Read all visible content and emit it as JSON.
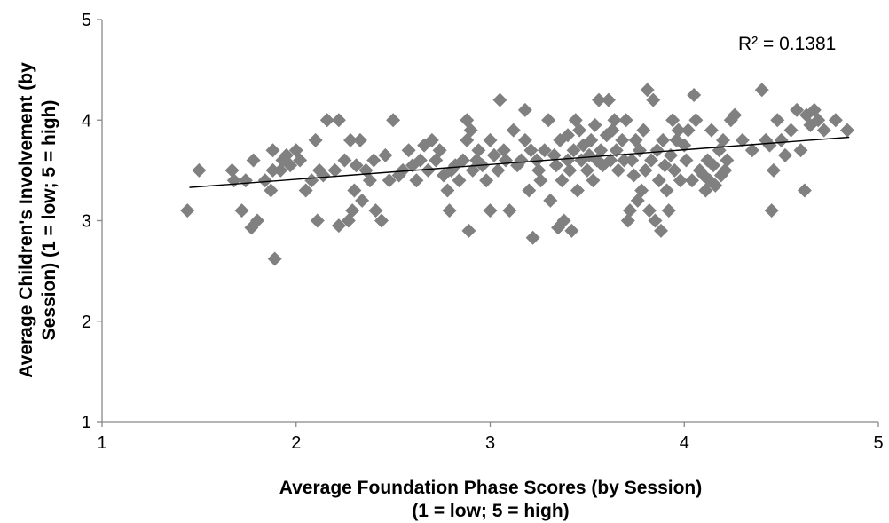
{
  "chart_data": {
    "type": "scatter",
    "title": "",
    "xlabel_lines": [
      "Average Foundation Phase Scores (by Session)",
      "(1 = low; 5 = high)"
    ],
    "ylabel_lines": [
      "Average Children's Involvement (by",
      "Session) (1 = low; 5 = high)"
    ],
    "xlim": [
      1,
      5
    ],
    "ylim": [
      1,
      5
    ],
    "xticks": [
      "1",
      "2",
      "3",
      "4",
      "5"
    ],
    "yticks": [
      "1",
      "2",
      "3",
      "4",
      "5"
    ],
    "grid": false,
    "legend": "none",
    "marker": "diamond",
    "marker_color": "#808080",
    "annotation": "R² = 0.1381",
    "trendline": {
      "type": "linear",
      "x": [
        1.45,
        4.85
      ],
      "y": [
        3.33,
        3.83
      ],
      "color": "#000000"
    },
    "series": [
      {
        "points": [
          [
            1.44,
            3.1
          ],
          [
            1.5,
            3.5
          ],
          [
            1.67,
            3.5
          ],
          [
            1.68,
            3.4
          ],
          [
            1.72,
            3.1
          ],
          [
            1.74,
            3.4
          ],
          [
            1.77,
            2.93
          ],
          [
            1.78,
            3.6
          ],
          [
            1.8,
            3.0
          ],
          [
            1.84,
            3.4
          ],
          [
            1.87,
            3.3
          ],
          [
            1.88,
            3.5
          ],
          [
            1.88,
            3.7
          ],
          [
            1.89,
            2.62
          ],
          [
            1.92,
            3.5
          ],
          [
            1.93,
            3.6
          ],
          [
            1.95,
            3.65
          ],
          [
            1.97,
            3.55
          ],
          [
            2.0,
            3.7
          ],
          [
            2.02,
            3.6
          ],
          [
            2.05,
            3.3
          ],
          [
            2.08,
            3.4
          ],
          [
            2.1,
            3.8
          ],
          [
            2.11,
            3.0
          ],
          [
            2.12,
            3.5
          ],
          [
            2.14,
            3.45
          ],
          [
            2.16,
            4.0
          ],
          [
            2.2,
            3.5
          ],
          [
            2.22,
            4.0
          ],
          [
            2.22,
            2.95
          ],
          [
            2.25,
            3.6
          ],
          [
            2.27,
            3.0
          ],
          [
            2.28,
            3.8
          ],
          [
            2.29,
            3.1
          ],
          [
            2.3,
            3.3
          ],
          [
            2.31,
            3.55
          ],
          [
            2.33,
            3.8
          ],
          [
            2.34,
            3.2
          ],
          [
            2.36,
            3.5
          ],
          [
            2.38,
            3.4
          ],
          [
            2.4,
            3.6
          ],
          [
            2.41,
            3.1
          ],
          [
            2.44,
            3.0
          ],
          [
            2.46,
            3.65
          ],
          [
            2.48,
            3.4
          ],
          [
            2.5,
            4.0
          ],
          [
            2.53,
            3.45
          ],
          [
            2.55,
            3.5
          ],
          [
            2.58,
            3.7
          ],
          [
            2.6,
            3.55
          ],
          [
            2.62,
            3.4
          ],
          [
            2.64,
            3.6
          ],
          [
            2.66,
            3.75
          ],
          [
            2.68,
            3.5
          ],
          [
            2.7,
            3.8
          ],
          [
            2.72,
            3.6
          ],
          [
            2.74,
            3.7
          ],
          [
            2.76,
            3.45
          ],
          [
            2.78,
            3.3
          ],
          [
            2.79,
            3.1
          ],
          [
            2.8,
            3.5
          ],
          [
            2.82,
            3.55
          ],
          [
            2.84,
            3.4
          ],
          [
            2.86,
            3.6
          ],
          [
            2.88,
            3.8
          ],
          [
            2.88,
            4.0
          ],
          [
            2.89,
            2.9
          ],
          [
            2.9,
            3.9
          ],
          [
            2.91,
            3.5
          ],
          [
            2.93,
            3.6
          ],
          [
            2.94,
            3.7
          ],
          [
            2.96,
            3.55
          ],
          [
            2.98,
            3.4
          ],
          [
            3.0,
            3.1
          ],
          [
            3.0,
            3.8
          ],
          [
            3.02,
            3.65
          ],
          [
            3.04,
            3.5
          ],
          [
            3.05,
            4.2
          ],
          [
            3.07,
            3.7
          ],
          [
            3.08,
            3.6
          ],
          [
            3.1,
            3.1
          ],
          [
            3.12,
            3.9
          ],
          [
            3.14,
            3.55
          ],
          [
            3.16,
            3.6
          ],
          [
            3.18,
            3.8
          ],
          [
            3.18,
            4.1
          ],
          [
            3.2,
            3.3
          ],
          [
            3.21,
            3.7
          ],
          [
            3.22,
            2.83
          ],
          [
            3.24,
            3.6
          ],
          [
            3.25,
            3.5
          ],
          [
            3.26,
            3.4
          ],
          [
            3.28,
            3.7
          ],
          [
            3.3,
            4.0
          ],
          [
            3.31,
            3.2
          ],
          [
            3.33,
            3.65
          ],
          [
            3.34,
            3.55
          ],
          [
            3.35,
            2.93
          ],
          [
            3.36,
            3.8
          ],
          [
            3.37,
            3.4
          ],
          [
            3.38,
            3.0
          ],
          [
            3.4,
            3.85
          ],
          [
            3.4,
            3.6
          ],
          [
            3.41,
            3.5
          ],
          [
            3.42,
            2.9
          ],
          [
            3.43,
            3.7
          ],
          [
            3.44,
            4.0
          ],
          [
            3.45,
            3.3
          ],
          [
            3.46,
            3.9
          ],
          [
            3.47,
            3.6
          ],
          [
            3.48,
            3.75
          ],
          [
            3.5,
            3.5
          ],
          [
            3.51,
            3.65
          ],
          [
            3.52,
            3.8
          ],
          [
            3.53,
            3.4
          ],
          [
            3.54,
            3.95
          ],
          [
            3.55,
            3.6
          ],
          [
            3.56,
            4.2
          ],
          [
            3.57,
            3.7
          ],
          [
            3.58,
            3.55
          ],
          [
            3.6,
            3.85
          ],
          [
            3.61,
            4.2
          ],
          [
            3.62,
            3.6
          ],
          [
            3.63,
            3.9
          ],
          [
            3.64,
            4.0
          ],
          [
            3.65,
            3.7
          ],
          [
            3.66,
            3.5
          ],
          [
            3.68,
            3.8
          ],
          [
            3.69,
            3.6
          ],
          [
            3.7,
            4.0
          ],
          [
            3.71,
            3.0
          ],
          [
            3.72,
            3.1
          ],
          [
            3.73,
            3.6
          ],
          [
            3.74,
            3.45
          ],
          [
            3.75,
            3.8
          ],
          [
            3.76,
            3.2
          ],
          [
            3.77,
            3.7
          ],
          [
            3.78,
            3.3
          ],
          [
            3.79,
            3.9
          ],
          [
            3.8,
            3.5
          ],
          [
            3.81,
            4.3
          ],
          [
            3.82,
            3.1
          ],
          [
            3.83,
            3.6
          ],
          [
            3.84,
            4.2
          ],
          [
            3.85,
            3.0
          ],
          [
            3.86,
            3.7
          ],
          [
            3.87,
            3.4
          ],
          [
            3.88,
            2.9
          ],
          [
            3.89,
            3.8
          ],
          [
            3.9,
            3.55
          ],
          [
            3.91,
            3.3
          ],
          [
            3.92,
            3.1
          ],
          [
            3.93,
            3.65
          ],
          [
            3.94,
            4.0
          ],
          [
            3.95,
            3.5
          ],
          [
            3.96,
            3.8
          ],
          [
            3.97,
            3.9
          ],
          [
            3.98,
            3.4
          ],
          [
            4.0,
            3.75
          ],
          [
            4.01,
            3.6
          ],
          [
            4.02,
            3.9
          ],
          [
            4.04,
            3.4
          ],
          [
            4.05,
            4.25
          ],
          [
            4.06,
            4.0
          ],
          [
            4.08,
            3.5
          ],
          [
            4.1,
            3.45
          ],
          [
            4.11,
            3.3
          ],
          [
            4.12,
            3.6
          ],
          [
            4.13,
            3.4
          ],
          [
            4.14,
            3.9
          ],
          [
            4.15,
            3.55
          ],
          [
            4.16,
            3.35
          ],
          [
            4.18,
            3.7
          ],
          [
            4.19,
            3.45
          ],
          [
            4.2,
            3.8
          ],
          [
            4.21,
            3.5
          ],
          [
            4.22,
            3.6
          ],
          [
            4.24,
            4.0
          ],
          [
            4.26,
            4.05
          ],
          [
            4.3,
            3.8
          ],
          [
            4.35,
            3.7
          ],
          [
            4.4,
            4.3
          ],
          [
            4.42,
            3.8
          ],
          [
            4.44,
            3.75
          ],
          [
            4.45,
            3.1
          ],
          [
            4.46,
            3.5
          ],
          [
            4.48,
            4.0
          ],
          [
            4.5,
            3.8
          ],
          [
            4.52,
            3.65
          ],
          [
            4.55,
            3.9
          ],
          [
            4.58,
            4.1
          ],
          [
            4.6,
            3.7
          ],
          [
            4.62,
            3.3
          ],
          [
            4.63,
            4.05
          ],
          [
            4.65,
            3.95
          ],
          [
            4.67,
            4.1
          ],
          [
            4.69,
            4.0
          ],
          [
            4.72,
            3.9
          ],
          [
            4.78,
            4.0
          ],
          [
            4.84,
            3.9
          ]
        ]
      }
    ]
  }
}
